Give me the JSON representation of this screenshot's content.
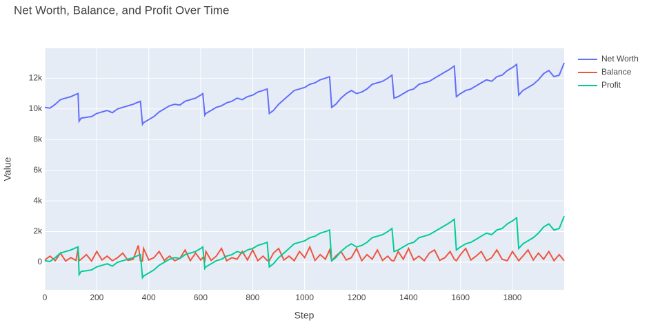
{
  "chart_data": {
    "type": "line",
    "title": "Net Worth, Balance, and Profit Over Time",
    "x_label": "Step",
    "y_label": "Value",
    "x": [
      0,
      20,
      40,
      60,
      80,
      100,
      120,
      128,
      132,
      140,
      160,
      180,
      200,
      220,
      240,
      260,
      280,
      300,
      320,
      340,
      360,
      368,
      376,
      380,
      400,
      420,
      440,
      460,
      480,
      500,
      520,
      540,
      560,
      580,
      600,
      608,
      616,
      620,
      640,
      660,
      680,
      700,
      720,
      740,
      760,
      780,
      800,
      820,
      840,
      856,
      864,
      880,
      900,
      920,
      940,
      960,
      980,
      1000,
      1020,
      1040,
      1060,
      1080,
      1096,
      1104,
      1120,
      1140,
      1160,
      1180,
      1200,
      1220,
      1240,
      1260,
      1280,
      1300,
      1320,
      1336,
      1344,
      1360,
      1380,
      1400,
      1420,
      1440,
      1460,
      1480,
      1500,
      1520,
      1540,
      1560,
      1576,
      1584,
      1600,
      1620,
      1640,
      1660,
      1680,
      1700,
      1720,
      1740,
      1760,
      1780,
      1800,
      1816,
      1824,
      1840,
      1860,
      1880,
      1900,
      1920,
      1940,
      1960,
      1980,
      1999
    ],
    "series": [
      {
        "name": "Net Worth",
        "color": "#636efa",
        "values": [
          10100,
          10050,
          10300,
          10600,
          10700,
          10800,
          10950,
          11000,
          9200,
          9400,
          9450,
          9500,
          9700,
          9800,
          9900,
          9750,
          10000,
          10100,
          10200,
          10300,
          10450,
          10500,
          9000,
          9100,
          9300,
          9500,
          9800,
          10000,
          10200,
          10300,
          10250,
          10500,
          10600,
          10700,
          10900,
          11000,
          9600,
          9700,
          9900,
          10100,
          10200,
          10400,
          10500,
          10700,
          10600,
          10800,
          10900,
          11100,
          11200,
          11300,
          9700,
          9900,
          10300,
          10600,
          10900,
          11200,
          11300,
          11400,
          11600,
          11700,
          11900,
          12000,
          12100,
          10100,
          10300,
          10700,
          11000,
          11200,
          11000,
          11100,
          11300,
          11600,
          11700,
          11800,
          12000,
          12200,
          10700,
          10800,
          11000,
          11200,
          11300,
          11600,
          11700,
          11800,
          12000,
          12200,
          12400,
          12600,
          12800,
          10800,
          11000,
          11200,
          11300,
          11500,
          11700,
          11900,
          11800,
          12100,
          12200,
          12500,
          12700,
          12900,
          10900,
          11200,
          11400,
          11600,
          11900,
          12300,
          12500,
          12100,
          12200,
          13000
        ]
      },
      {
        "name": "Balance",
        "color": "#ef553b",
        "values": [
          150,
          400,
          100,
          600,
          80,
          300,
          120,
          900,
          100,
          200,
          500,
          80,
          700,
          150,
          400,
          100,
          300,
          600,
          120,
          200,
          1100,
          100,
          80,
          900,
          150,
          300,
          700,
          120,
          400,
          100,
          250,
          800,
          100,
          600,
          150,
          300,
          100,
          700,
          120,
          400,
          900,
          100,
          300,
          200,
          700,
          150,
          800,
          100,
          400,
          120,
          100,
          600,
          900,
          150,
          400,
          100,
          700,
          300,
          1000,
          120,
          500,
          200,
          800,
          100,
          400,
          700,
          150,
          300,
          900,
          100,
          500,
          200,
          800,
          120,
          400,
          100,
          100,
          700,
          200,
          900,
          150,
          400,
          100,
          600,
          800,
          120,
          300,
          700,
          200,
          100,
          500,
          900,
          150,
          400,
          700,
          100,
          300,
          800,
          200,
          100,
          700,
          300,
          100,
          400,
          800,
          150,
          600,
          200,
          700,
          100,
          500,
          100
        ]
      },
      {
        "name": "Profit",
        "color": "#00cc96",
        "values": [
          100,
          50,
          300,
          600,
          700,
          800,
          950,
          1000,
          -800,
          -600,
          -550,
          -500,
          -300,
          -200,
          -100,
          -250,
          0,
          100,
          200,
          300,
          450,
          500,
          -1000,
          -900,
          -700,
          -500,
          -200,
          0,
          200,
          300,
          250,
          500,
          600,
          700,
          900,
          1000,
          -400,
          -300,
          -100,
          100,
          200,
          400,
          500,
          700,
          600,
          800,
          900,
          1100,
          1200,
          1300,
          -300,
          -100,
          300,
          600,
          900,
          1200,
          1300,
          1400,
          1600,
          1700,
          1900,
          2000,
          2100,
          100,
          300,
          700,
          1000,
          1200,
          1000,
          1100,
          1300,
          1600,
          1700,
          1800,
          2000,
          2200,
          700,
          800,
          1000,
          1200,
          1300,
          1600,
          1700,
          1800,
          2000,
          2200,
          2400,
          2600,
          2800,
          800,
          1000,
          1200,
          1300,
          1500,
          1700,
          1900,
          1800,
          2100,
          2200,
          2500,
          2700,
          2900,
          900,
          1200,
          1400,
          1600,
          1900,
          2300,
          2500,
          2100,
          2200,
          3000
        ]
      }
    ],
    "xlim": [
      0,
      1999
    ],
    "xticks": [
      0,
      200,
      400,
      600,
      800,
      1000,
      1200,
      1400,
      1600,
      1800
    ],
    "ylim": [
      -1800,
      13950
    ],
    "yticks": [
      0,
      {
        "value": 2000,
        "label": "2k"
      },
      {
        "value": 4000,
        "label": "4k"
      },
      {
        "value": 6000,
        "label": "6k"
      },
      {
        "value": 8000,
        "label": "8k"
      },
      {
        "value": 10000,
        "label": "10k"
      },
      {
        "value": 12000,
        "label": "12k"
      }
    ],
    "grid": true,
    "legend": "right",
    "background": "#e5ecf6"
  }
}
